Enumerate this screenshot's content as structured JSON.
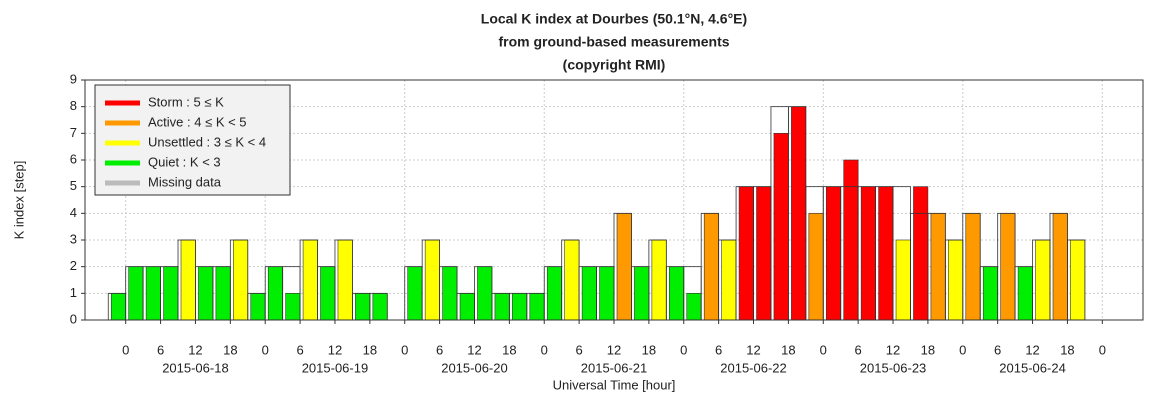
{
  "chart_data": {
    "type": "bar",
    "title": [
      "Local K index at Dourbes (50.1°N, 4.6°E)",
      "from ground-based measurements",
      "(copyright RMI)"
    ],
    "ylabel": "K index [step]",
    "xlabel": "Universal Time [hour]",
    "x": [
      0,
      3,
      6,
      9,
      12,
      15,
      18,
      21,
      24,
      27,
      30,
      33,
      36,
      39,
      42,
      45,
      48,
      51,
      54,
      57,
      60,
      63,
      66,
      69,
      72,
      75,
      78,
      81,
      84,
      87,
      90,
      93,
      96,
      99,
      102,
      105,
      108,
      111,
      114,
      117,
      120,
      123,
      126,
      129,
      132,
      135,
      138,
      141,
      144,
      147,
      150,
      153,
      156,
      159,
      162,
      165
    ],
    "values": [
      1,
      2,
      2,
      2,
      3,
      2,
      2,
      3,
      1,
      2,
      1,
      3,
      2,
      3,
      1,
      1,
      0,
      2,
      3,
      2,
      1,
      2,
      1,
      1,
      1,
      2,
      3,
      2,
      2,
      4,
      2,
      3,
      2,
      1,
      4,
      3,
      5,
      5,
      7,
      8,
      4,
      5,
      6,
      5,
      5,
      3,
      5,
      4,
      3,
      4,
      2,
      4,
      2,
      3,
      4,
      3
    ],
    "forecast_values": [
      1,
      2,
      2,
      2,
      3,
      2,
      2,
      3,
      1,
      2,
      2,
      3,
      2,
      3,
      1,
      1,
      0,
      2,
      3,
      2,
      1,
      2,
      1,
      1,
      1,
      2,
      3,
      2,
      2,
      4,
      2,
      3,
      2,
      2,
      4,
      3,
      5,
      5,
      8,
      8,
      5,
      5,
      5,
      5,
      5,
      5,
      4,
      4,
      3,
      4,
      2,
      4,
      2,
      3,
      4,
      3
    ],
    "legend": [
      {
        "label": "Storm : 5 ≤ K",
        "color": "#ff0000"
      },
      {
        "label": "Active : 4 ≤ K < 5",
        "color": "#ff9900"
      },
      {
        "label": "Unsettled : 3 ≤ K < 4",
        "color": "#ffff00"
      },
      {
        "label": "Quiet : K < 3",
        "color": "#00ee00"
      },
      {
        "label": "Missing data",
        "color": "#bbbbbb"
      }
    ],
    "legend_position": "upper left",
    "xlim": [
      -7,
      175
    ],
    "ylim": [
      0,
      9
    ],
    "yticks": [
      0,
      1,
      2,
      3,
      4,
      5,
      6,
      7,
      8,
      9
    ],
    "xticks": [
      0,
      6,
      12,
      18,
      {
        "value": 24,
        "label": "0"
      },
      {
        "value": 30,
        "label": "6"
      },
      {
        "value": 36,
        "label": "12"
      },
      {
        "value": 42,
        "label": "18"
      },
      {
        "value": 48,
        "label": "0"
      },
      {
        "value": 54,
        "label": "6"
      },
      {
        "value": 60,
        "label": "12"
      },
      {
        "value": 66,
        "label": "18"
      },
      {
        "value": 72,
        "label": "0"
      },
      {
        "value": 78,
        "label": "6"
      },
      {
        "value": 84,
        "label": "12"
      },
      {
        "value": 90,
        "label": "18"
      },
      {
        "value": 96,
        "label": "0"
      },
      {
        "value": 102,
        "label": "6"
      },
      {
        "value": 108,
        "label": "12"
      },
      {
        "value": 114,
        "label": "18"
      },
      {
        "value": 120,
        "label": "0"
      },
      {
        "value": 126,
        "label": "6"
      },
      {
        "value": 132,
        "label": "12"
      },
      {
        "value": 138,
        "label": "18"
      },
      {
        "value": 144,
        "label": "0"
      },
      {
        "value": 150,
        "label": "6"
      },
      {
        "value": 156,
        "label": "12"
      },
      {
        "value": 162,
        "label": "18"
      },
      {
        "value": 168,
        "label": "0"
      }
    ],
    "day_labels": [
      {
        "value": 12,
        "label": "2015-06-18"
      },
      {
        "value": 36,
        "label": "2015-06-19"
      },
      {
        "value": 60,
        "label": "2015-06-20"
      },
      {
        "value": 84,
        "label": "2015-06-21"
      },
      {
        "value": 108,
        "label": "2015-06-22"
      },
      {
        "value": 132,
        "label": "2015-06-23"
      },
      {
        "value": 156,
        "label": "2015-06-24"
      }
    ],
    "day_grid": [
      {
        "value": 0
      },
      {
        "value": 24
      },
      {
        "value": 48
      },
      {
        "value": 72
      },
      {
        "value": 96
      },
      {
        "value": 120
      },
      {
        "value": 144
      },
      {
        "value": 168
      }
    ],
    "grid": true
  }
}
